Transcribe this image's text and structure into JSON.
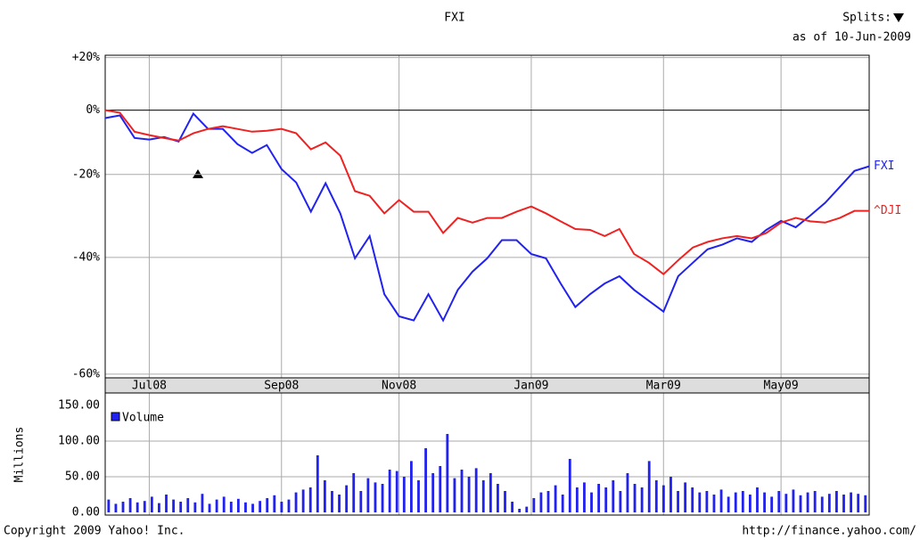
{
  "header": {
    "splits_label": "Splits:",
    "as_of": "as of 10-Jun-2009"
  },
  "footer": {
    "copyright": "Copyright 2009 Yahoo! Inc.",
    "url": "http://finance.yahoo.com/"
  },
  "chart_data": [
    {
      "type": "line",
      "title": "FXI",
      "log_scale": true,
      "grid": true,
      "categories": [
        null,
        null,
        null,
        "Jul08",
        null,
        null,
        null,
        null,
        null,
        null,
        null,
        null,
        "Sep08",
        null,
        null,
        null,
        null,
        null,
        null,
        null,
        "Nov08",
        null,
        null,
        null,
        null,
        null,
        null,
        null,
        null,
        "Jan09",
        null,
        null,
        null,
        null,
        null,
        null,
        null,
        null,
        "Mar09",
        null,
        null,
        null,
        null,
        null,
        null,
        null,
        "May09",
        null,
        null,
        null,
        null,
        null,
        null
      ],
      "series": [
        {
          "name": "FXI",
          "color": "#2222ee",
          "values": [
            -2.7,
            -1.8,
            -9.2,
            -9.7,
            -8.9,
            -10.3,
            -1.2,
            -6.3,
            -6.3,
            -11.1,
            -13.8,
            -11.4,
            -18.5,
            -22.2,
            -29.7,
            -22.4,
            -30.1,
            -40.2,
            -35.4,
            -47.2,
            -51.1,
            -51.8,
            -47.2,
            -51.8,
            -46.4,
            -42.9,
            -40.2,
            -36.3,
            -36.3,
            -39.3,
            -40.2,
            -45.2,
            -49.5,
            -47.2,
            -45.2,
            -43.8,
            -46.4,
            -48.4,
            -50.3,
            -43.8,
            -41.1,
            -38.3,
            -37.3,
            -35.9,
            -36.7,
            -34.0,
            -31.9,
            -33.4,
            -30.6,
            -27.5,
            -23.4,
            -19.0,
            -17.7
          ]
        },
        {
          "name": "^DJI",
          "color": "#ee2222",
          "values": [
            0,
            -0.9,
            -7.2,
            -8.3,
            -9.2,
            -10.0,
            -7.7,
            -6.3,
            -5.4,
            -6.3,
            -7.2,
            -6.9,
            -6.3,
            -7.7,
            -12.7,
            -10.6,
            -14.6,
            -24.5,
            -25.7,
            -30.1,
            -26.8,
            -29.7,
            -29.7,
            -34.7,
            -31.2,
            -32.3,
            -31.2,
            -31.2,
            -29.7,
            -28.4,
            -30.1,
            -32.0,
            -33.8,
            -34.0,
            -35.4,
            -33.8,
            -39.3,
            -41.1,
            -43.4,
            -40.6,
            -37.9,
            -36.7,
            -35.9,
            -35.4,
            -35.9,
            -34.7,
            -32.3,
            -31.2,
            -32.0,
            -32.3,
            -31.2,
            -29.5,
            -29.5
          ]
        }
      ],
      "ylim": [
        -60.5,
        21
      ],
      "yticks": [
        {
          "value": 20,
          "label": "+20%"
        },
        {
          "value": 0,
          "label": "0%"
        },
        {
          "value": -20,
          "label": "-20%"
        },
        {
          "value": -40,
          "label": "-40%"
        },
        {
          "value": -60,
          "label": "-60%"
        }
      ]
    },
    {
      "type": "bar",
      "ylabel": "Millions",
      "grid": true,
      "series": [
        {
          "name": "Volume",
          "color": "#2222ee",
          "values": [
            18,
            12,
            15,
            20,
            14,
            16,
            22,
            13,
            25,
            18,
            15,
            20,
            14,
            26,
            12,
            18,
            22,
            15,
            19,
            14,
            12,
            16,
            20,
            24,
            15,
            18,
            28,
            32,
            35,
            80,
            45,
            30,
            25,
            38,
            55,
            30,
            48,
            42,
            40,
            60,
            58,
            50,
            72,
            45,
            90,
            55,
            65,
            110,
            48,
            60,
            50,
            62,
            45,
            55,
            40,
            30,
            15,
            5,
            8,
            20,
            28,
            30,
            38,
            25,
            75,
            35,
            42,
            28,
            40,
            35,
            45,
            30,
            55,
            40,
            35,
            72,
            45,
            38,
            50,
            30,
            42,
            35,
            28,
            30,
            25,
            32,
            22,
            28,
            30,
            25,
            35,
            28,
            22,
            30,
            26,
            32,
            24,
            28,
            30,
            22,
            26,
            30,
            25,
            28,
            26,
            24
          ]
        }
      ],
      "ylim": [
        0,
        150
      ],
      "yticks": [
        {
          "value": 0,
          "label": "0.00"
        },
        {
          "value": 50,
          "label": "50.00"
        },
        {
          "value": 100,
          "label": "100.00"
        },
        {
          "value": 150,
          "label": "150.00"
        }
      ]
    }
  ]
}
